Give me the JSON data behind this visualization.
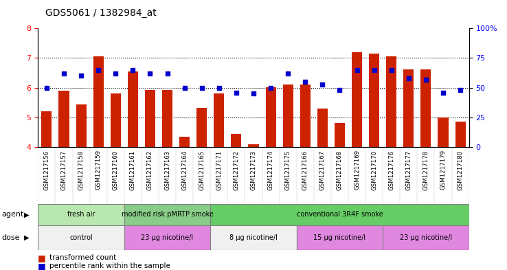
{
  "title": "GDS5061 / 1382984_at",
  "samples": [
    "GSM1217156",
    "GSM1217157",
    "GSM1217158",
    "GSM1217159",
    "GSM1217160",
    "GSM1217161",
    "GSM1217162",
    "GSM1217163",
    "GSM1217164",
    "GSM1217165",
    "GSM1217171",
    "GSM1217172",
    "GSM1217173",
    "GSM1217174",
    "GSM1217175",
    "GSM1217166",
    "GSM1217167",
    "GSM1217168",
    "GSM1217169",
    "GSM1217170",
    "GSM1217176",
    "GSM1217177",
    "GSM1217178",
    "GSM1217179",
    "GSM1217180"
  ],
  "bar_values": [
    5.2,
    5.9,
    5.45,
    7.05,
    5.82,
    6.55,
    5.92,
    5.92,
    4.35,
    5.32,
    5.82,
    4.45,
    4.1,
    6.02,
    6.12,
    6.12,
    5.3,
    4.82,
    7.2,
    7.15,
    7.05,
    6.62,
    6.62,
    5.0,
    4.85
  ],
  "percentile_values": [
    50,
    62,
    60,
    65,
    62,
    65,
    62,
    62,
    50,
    50,
    50,
    46,
    45,
    50,
    62,
    55,
    53,
    48,
    65,
    65,
    65,
    58,
    57,
    46,
    48
  ],
  "bar_color": "#cc2200",
  "dot_color": "#0000cc",
  "ylim_left": [
    4,
    8
  ],
  "ylim_right": [
    0,
    100
  ],
  "yticks_left": [
    4,
    5,
    6,
    7,
    8
  ],
  "yticks_right": [
    0,
    25,
    50,
    75,
    100
  ],
  "agent_groups": [
    {
      "label": "fresh air",
      "start": 0,
      "end": 5,
      "color": "#b8e8b0"
    },
    {
      "label": "modified risk pMRTP smoke",
      "start": 5,
      "end": 10,
      "color": "#88cc88"
    },
    {
      "label": "conventional 3R4F smoke",
      "start": 10,
      "end": 25,
      "color": "#66cc66"
    }
  ],
  "dose_groups": [
    {
      "label": "control",
      "start": 0,
      "end": 5,
      "color": "#f0f0f0"
    },
    {
      "label": "23 μg nicotine/l",
      "start": 5,
      "end": 10,
      "color": "#e088e0"
    },
    {
      "label": "8 μg nicotine/l",
      "start": 10,
      "end": 15,
      "color": "#f0f0f0"
    },
    {
      "label": "15 μg nicotine/l",
      "start": 15,
      "end": 20,
      "color": "#e088e0"
    },
    {
      "label": "23 μg nicotine/l",
      "start": 20,
      "end": 25,
      "color": "#e088e0"
    }
  ],
  "bar_width": 0.6,
  "tick_bg_color": "#d8d8d8"
}
